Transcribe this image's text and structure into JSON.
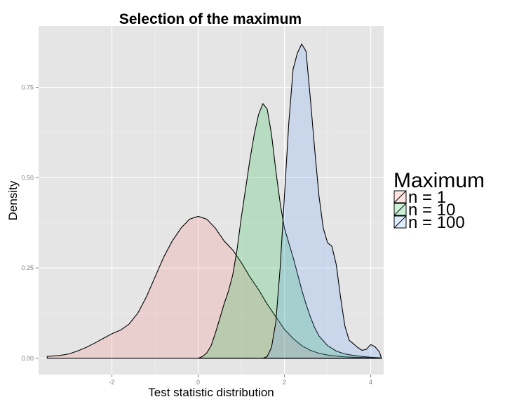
{
  "chart_data": {
    "type": "area",
    "title": "Selection of the maximum",
    "xlabel": "Test statistic distribution",
    "ylabel": "Density",
    "xlim": [
      -3.7,
      4.3
    ],
    "ylim": [
      -0.045,
      0.92
    ],
    "x_ticks": [
      -2,
      0,
      2,
      4
    ],
    "x_tick_labels": [
      "-2",
      "0",
      "2",
      "4"
    ],
    "y_ticks": [
      0.0,
      0.25,
      0.5,
      0.75
    ],
    "y_tick_labels": [
      "0.00",
      "0.25",
      "0.50",
      "0.75"
    ],
    "grid": true,
    "legend": {
      "title": "Maximum",
      "position": "right"
    },
    "series": [
      {
        "name": "n = 1",
        "fill": "#F8766D",
        "x": [
          -3.5,
          -3.2,
          -3.0,
          -2.8,
          -2.6,
          -2.4,
          -2.2,
          -2.0,
          -1.8,
          -1.6,
          -1.4,
          -1.2,
          -1.0,
          -0.8,
          -0.6,
          -0.4,
          -0.2,
          0.0,
          0.2,
          0.4,
          0.6,
          0.8,
          1.0,
          1.2,
          1.4,
          1.6,
          1.8,
          2.0,
          2.2,
          2.4,
          2.6,
          2.8,
          3.0,
          3.2,
          3.4,
          3.6,
          3.8,
          4.0,
          4.25
        ],
        "y": [
          0.005,
          0.008,
          0.012,
          0.02,
          0.03,
          0.042,
          0.055,
          0.068,
          0.078,
          0.095,
          0.125,
          0.17,
          0.225,
          0.28,
          0.325,
          0.36,
          0.385,
          0.393,
          0.385,
          0.36,
          0.325,
          0.3,
          0.265,
          0.225,
          0.19,
          0.15,
          0.115,
          0.08,
          0.055,
          0.035,
          0.022,
          0.014,
          0.009,
          0.006,
          0.004,
          0.003,
          0.002,
          0.002,
          0.001
        ]
      },
      {
        "name": "n = 10",
        "fill": "#00BA38",
        "x": [
          0.0,
          0.1,
          0.2,
          0.3,
          0.4,
          0.5,
          0.6,
          0.7,
          0.8,
          0.9,
          1.0,
          1.1,
          1.2,
          1.3,
          1.4,
          1.5,
          1.6,
          1.7,
          1.8,
          1.9,
          2.0,
          2.1,
          2.2,
          2.3,
          2.4,
          2.5,
          2.6,
          2.7,
          2.8,
          3.0,
          3.2,
          3.4,
          3.6,
          3.8,
          4.0,
          4.25
        ],
        "y": [
          0.0,
          0.005,
          0.015,
          0.035,
          0.07,
          0.11,
          0.15,
          0.185,
          0.23,
          0.3,
          0.39,
          0.47,
          0.55,
          0.62,
          0.675,
          0.705,
          0.69,
          0.62,
          0.52,
          0.43,
          0.36,
          0.32,
          0.28,
          0.235,
          0.19,
          0.15,
          0.115,
          0.085,
          0.062,
          0.035,
          0.02,
          0.012,
          0.008,
          0.005,
          0.003,
          0.001
        ]
      },
      {
        "name": "n = 100",
        "fill": "#619CFF",
        "x": [
          1.5,
          1.6,
          1.7,
          1.8,
          1.9,
          2.0,
          2.1,
          2.2,
          2.3,
          2.4,
          2.5,
          2.6,
          2.7,
          2.8,
          2.9,
          3.0,
          3.1,
          3.2,
          3.3,
          3.4,
          3.5,
          3.6,
          3.7,
          3.8,
          3.9,
          4.0,
          4.1,
          4.2,
          4.25
        ],
        "y": [
          0.0,
          0.005,
          0.03,
          0.1,
          0.25,
          0.45,
          0.65,
          0.8,
          0.845,
          0.87,
          0.85,
          0.72,
          0.58,
          0.45,
          0.36,
          0.32,
          0.31,
          0.26,
          0.17,
          0.09,
          0.05,
          0.04,
          0.03,
          0.022,
          0.025,
          0.038,
          0.032,
          0.018,
          0.0
        ]
      }
    ]
  }
}
